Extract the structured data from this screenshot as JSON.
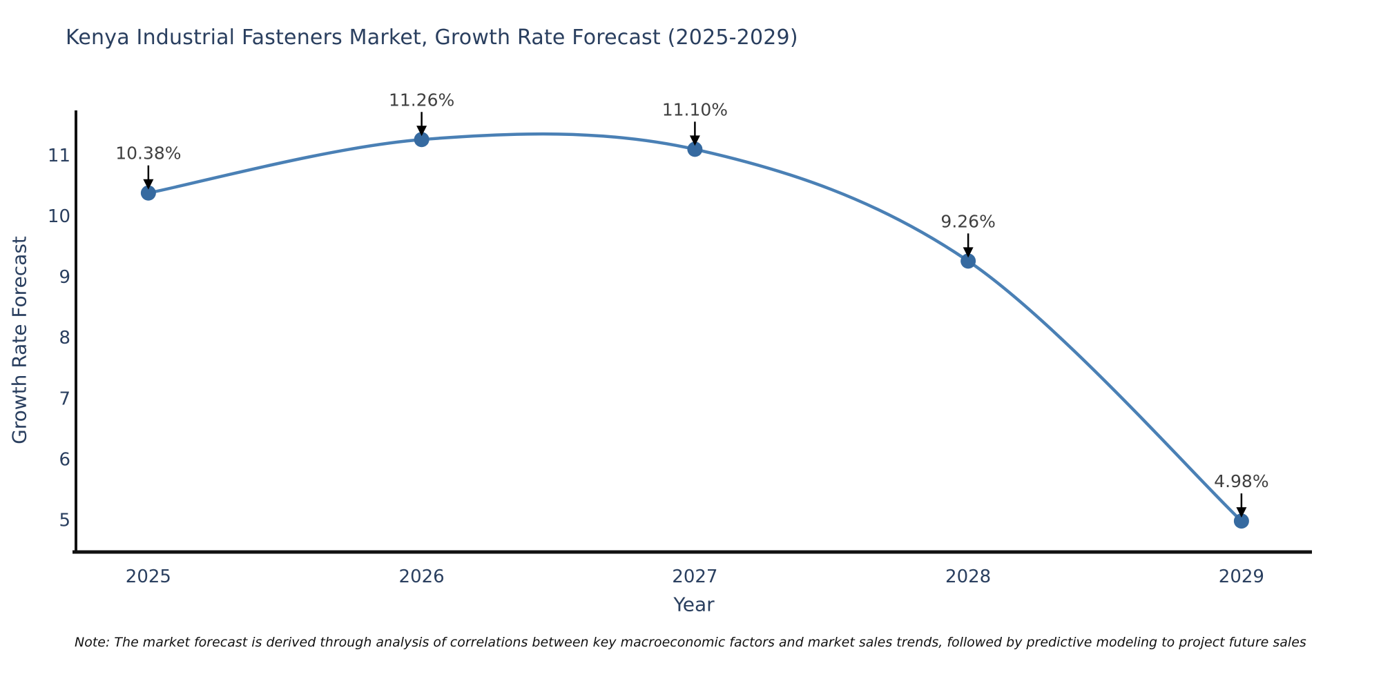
{
  "header": {
    "title": "Kenya Industrial Fasteners Market, Growth Rate Forecast (2025-2029)"
  },
  "footer": {
    "note": "Note: The market forecast is derived through analysis of correlations between key macroeconomic factors and market sales trends, followed by predictive modeling to project future sales"
  },
  "chart_data": {
    "type": "line",
    "line_shape": "spline",
    "title": "Kenya Industrial Fasteners Market, Growth Rate Forecast (2025-2029)",
    "xlabel": "Year",
    "ylabel": "Growth Rate Forecast",
    "x": [
      2025,
      2026,
      2027,
      2028,
      2029
    ],
    "series": [
      {
        "name": "Growth Rate Forecast",
        "values": [
          10.38,
          11.26,
          11.1,
          9.26,
          4.98
        ]
      }
    ],
    "point_labels": [
      "10.38%",
      "11.26%",
      "11.10%",
      "9.26%",
      "4.98%"
    ],
    "xticks": [
      "2025",
      "2026",
      "2027",
      "2028",
      "2029"
    ],
    "xtick_values": [
      2025,
      2026,
      2027,
      2028,
      2029
    ],
    "yticks": [
      5,
      6,
      7,
      8,
      9,
      10,
      11
    ],
    "xlim": [
      2024.735,
      2029.258
    ],
    "ylim": [
      4.47,
      11.74
    ],
    "grid": false,
    "legend_position": "none",
    "colors": {
      "line": "#4a80b5",
      "marker": "#366aa0",
      "axis": "#111111",
      "tick_text": "#2a3f5f",
      "title_text": "#2a3f5f",
      "axis_title_text": "#2a3f5f",
      "annotation_text": "#404040",
      "annotation_arrow": "#000000",
      "note_text": "#111111",
      "background": "#ffffff"
    }
  }
}
